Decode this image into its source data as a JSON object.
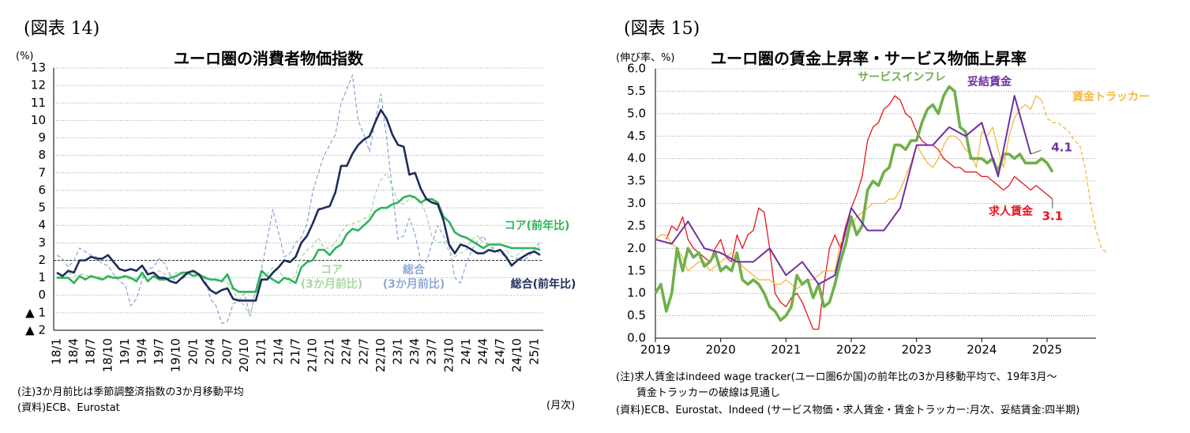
{
  "figure_label_left": "(図表 14)",
  "figure_label_right": "(図表 15)",
  "chart_data": [
    {
      "type": "line",
      "title": "ユーロ圏の消費者物価指数",
      "y_label": "(%)",
      "x_label": "(月次)",
      "notes": [
        "(注)3か月前比は季節調整済指数の3か月移動平均",
        "(資料)ECB、Eurostat"
      ],
      "ylim": [
        -2,
        13
      ],
      "yticks": [
        {
          "value": -2,
          "label": "▲ 2"
        },
        {
          "value": -1,
          "label": "▲ 1"
        },
        0,
        1,
        2,
        3,
        4,
        5,
        6,
        7,
        8,
        9,
        10,
        11,
        12,
        13
      ],
      "grid": true,
      "hline": 2,
      "categories": [
        "18/1",
        null,
        null,
        "18/4",
        null,
        null,
        "18/7",
        null,
        null,
        "18/10",
        null,
        null,
        "19/1",
        null,
        null,
        "19/4",
        null,
        null,
        "19/7",
        null,
        null,
        "19/10",
        null,
        null,
        "20/1",
        null,
        null,
        "20/4",
        null,
        null,
        "20/7",
        null,
        null,
        "20/10",
        null,
        null,
        "21/1",
        null,
        null,
        "21/4",
        null,
        null,
        "21/7",
        null,
        null,
        "21/10",
        null,
        null,
        "22/1",
        null,
        null,
        "22/4",
        null,
        null,
        "22/7",
        null,
        null,
        "22/10",
        null,
        null,
        "23/1",
        null,
        null,
        "23/4",
        null,
        null,
        "23/7",
        null,
        null,
        "23/10",
        null,
        null,
        "24/1",
        null,
        null,
        "24/4",
        null,
        null,
        "24/7",
        null,
        null,
        "24/10",
        null,
        null,
        "25/1",
        null
      ],
      "series": [
        {
          "name": "総合\n(3か月前比)",
          "color": "#8fa8d8",
          "dash": true,
          "width": 1.3,
          "values": [
            2.3,
            2.1,
            1.6,
            2.0,
            2.7,
            2.5,
            2.3,
            2.2,
            1.8,
            1.7,
            1.2,
            0.8,
            0.6,
            -0.6,
            -0.2,
            0.9,
            1.5,
            1.6,
            2.1,
            1.8,
            1.1,
            0.8,
            0.9,
            1.2,
            1.4,
            1.2,
            1.1,
            -0.2,
            -0.6,
            -1.6,
            -1.5,
            -0.5,
            -0.3,
            0.1,
            -1.2,
            0.4,
            1.5,
            3.2,
            4.9,
            3.6,
            2.2,
            2.4,
            3.0,
            3.3,
            4.1,
            5.9,
            7.0,
            8.0,
            8.6,
            9.2,
            11.0,
            11.8,
            12.6,
            10.0,
            9.2,
            8.2,
            10.0,
            11.5,
            9.0,
            6.0,
            3.2,
            3.4,
            4.4,
            3.5,
            2.0,
            1.9,
            3.0,
            4.0,
            3.4,
            2.8,
            1.0,
            0.7,
            1.8,
            2.6,
            3.1,
            3.4,
            2.8,
            2.6,
            2.4,
            2.2,
            1.6,
            2.2,
            2.0,
            2.2,
            2.7,
            3.0
          ]
        },
        {
          "name": "コア\n(3か月前比)",
          "color": "#a8d8a0",
          "dash": true,
          "width": 1.3,
          "values": [
            1.0,
            1.1,
            1.3,
            1.1,
            1.2,
            1.2,
            1.0,
            1.1,
            1.0,
            0.9,
            1.1,
            1.0,
            1.0,
            0.9,
            1.0,
            1.1,
            1.2,
            1.3,
            1.4,
            1.2,
            1.1,
            1.3,
            1.2,
            1.2,
            1.3,
            1.1,
            1.1,
            0.9,
            0.8,
            0.9,
            0.7,
            0.3,
            -0.3,
            -0.6,
            -1.2,
            0.3,
            1.1,
            1.2,
            1.6,
            1.4,
            1.0,
            0.7,
            1.2,
            2.2,
            2.6,
            2.8,
            3.3,
            2.7,
            2.7,
            3.0,
            3.6,
            4.0,
            4.1,
            4.2,
            4.4,
            4.5,
            5.8,
            6.6,
            7.0,
            6.2,
            5.4,
            5.2,
            5.5,
            5.6,
            5.4,
            4.6,
            3.3,
            3.0,
            3.1,
            2.5,
            2.2,
            2.4,
            2.6,
            3.2,
            3.4,
            3.0,
            2.9,
            2.7,
            2.4,
            2.6,
            2.2,
            2.3,
            2.6,
            2.7,
            2.6,
            2.8
          ]
        },
        {
          "name": "コア(前年比)",
          "color": "#2db35d",
          "width": 2.6,
          "values": [
            1.0,
            1.0,
            1.0,
            0.7,
            1.1,
            0.9,
            1.1,
            1.0,
            0.9,
            1.1,
            1.0,
            1.0,
            1.1,
            1.0,
            0.8,
            1.3,
            0.8,
            1.1,
            0.9,
            0.9,
            1.0,
            1.1,
            1.3,
            1.3,
            1.1,
            1.2,
            1.0,
            0.9,
            0.9,
            0.8,
            1.2,
            0.4,
            0.2,
            0.2,
            0.2,
            0.2,
            1.4,
            1.1,
            0.9,
            0.7,
            1.0,
            0.9,
            0.7,
            1.6,
            1.9,
            2.0,
            2.6,
            2.6,
            2.3,
            2.7,
            2.9,
            3.5,
            3.8,
            3.7,
            4.0,
            4.3,
            4.8,
            5.0,
            5.0,
            5.2,
            5.3,
            5.6,
            5.7,
            5.6,
            5.3,
            5.5,
            5.5,
            5.3,
            4.5,
            4.2,
            3.6,
            3.4,
            3.3,
            3.1,
            2.9,
            2.7,
            2.9,
            2.9,
            2.9,
            2.8,
            2.7,
            2.7,
            2.7,
            2.7,
            2.7,
            2.6
          ]
        },
        {
          "name": "総合(前年比)",
          "color": "#1f2d5a",
          "width": 2.6,
          "values": [
            1.3,
            1.1,
            1.4,
            1.3,
            2.0,
            2.0,
            2.2,
            2.1,
            2.1,
            2.3,
            1.9,
            1.5,
            1.4,
            1.5,
            1.4,
            1.7,
            1.2,
            1.3,
            1.0,
            1.0,
            0.8,
            0.7,
            1.0,
            1.3,
            1.4,
            1.2,
            0.7,
            0.3,
            0.1,
            0.3,
            0.4,
            -0.2,
            -0.3,
            -0.3,
            -0.3,
            -0.3,
            0.9,
            0.9,
            1.3,
            1.6,
            2.0,
            1.9,
            2.2,
            3.0,
            3.4,
            4.1,
            4.9,
            5.0,
            5.1,
            5.9,
            7.4,
            7.4,
            8.1,
            8.6,
            8.9,
            9.1,
            9.9,
            10.6,
            10.1,
            9.2,
            8.6,
            8.5,
            6.9,
            7.0,
            6.1,
            5.5,
            5.3,
            5.2,
            4.3,
            2.9,
            2.4,
            2.9,
            2.8,
            2.6,
            2.4,
            2.4,
            2.6,
            2.5,
            2.6,
            2.2,
            1.7,
            2.0,
            2.2,
            2.4,
            2.5,
            2.3
          ]
        }
      ]
    },
    {
      "type": "line",
      "title": "ユーロ圏の賃金上昇率・サービス物価上昇率",
      "y_label": "(伸び率、%)",
      "notes": [
        "(注)求人賃金はindeed wage tracker(ユーロ圏6か国)の前年比の3か月移動平均で、19年3月～",
        "　　賃金トラッカーの破線は見通し",
        "(資料)ECB、Eurostat、Indeed (サービス物価・求人賃金・賃金トラッカー:月次、妥結賃金:四半期)"
      ],
      "xlim": [
        2019,
        2025.75
      ],
      "xticks": [
        2019,
        2020,
        2021,
        2022,
        2023,
        2024,
        2025
      ],
      "ylim": [
        0,
        6
      ],
      "yticks": [
        {
          "value": 0,
          "label": "0.0"
        },
        {
          "value": 0.5,
          "label": "0.5"
        },
        {
          "value": 1,
          "label": "1.0"
        },
        {
          "value": 1.5,
          "label": "1.5"
        },
        {
          "value": 2,
          "label": "2.0"
        },
        {
          "value": 2.5,
          "label": "2.5"
        },
        {
          "value": 3,
          "label": "3.0"
        },
        {
          "value": 3.5,
          "label": "3.5"
        },
        {
          "value": 4,
          "label": "4.0"
        },
        {
          "value": 4.5,
          "label": "4.5"
        },
        {
          "value": 5,
          "label": "5.0"
        },
        {
          "value": 5.5,
          "label": "5.5"
        },
        {
          "value": 6,
          "label": "6.0"
        }
      ],
      "grid": true,
      "x": [
        2019,
        2019.083,
        2019.167,
        2019.25,
        2019.333,
        2019.417,
        2019.5,
        2019.583,
        2019.667,
        2019.75,
        2019.833,
        2019.917,
        2020,
        2020.083,
        2020.167,
        2020.25,
        2020.333,
        2020.417,
        2020.5,
        2020.583,
        2020.667,
        2020.75,
        2020.833,
        2020.917,
        2021,
        2021.083,
        2021.167,
        2021.25,
        2021.333,
        2021.417,
        2021.5,
        2021.583,
        2021.667,
        2021.75,
        2021.833,
        2021.917,
        2022,
        2022.083,
        2022.167,
        2022.25,
        2022.333,
        2022.417,
        2022.5,
        2022.583,
        2022.667,
        2022.75,
        2022.833,
        2022.917,
        2023,
        2023.083,
        2023.167,
        2023.25,
        2023.333,
        2023.417,
        2023.5,
        2023.583,
        2023.667,
        2023.75,
        2023.833,
        2023.917,
        2024,
        2024.083,
        2024.167,
        2024.25,
        2024.333,
        2024.417,
        2024.5,
        2024.583,
        2024.667,
        2024.75,
        2024.833,
        2024.917,
        2025,
        2025.083,
        2025.167,
        2025.25,
        2025.333,
        2025.417,
        2025.5,
        2025.583,
        2025.667,
        2025.75,
        2025.833,
        2025.917
      ],
      "series": [
        {
          "name": "求人賃金",
          "color": "#e8141c",
          "width": 1.3,
          "end_label": true,
          "values": [
            null,
            null,
            2.2,
            2.5,
            2.4,
            2.7,
            2.2,
            2.0,
            1.9,
            1.8,
            1.7,
            2.0,
            2.2,
            1.8,
            1.7,
            2.3,
            2.0,
            2.3,
            2.4,
            2.9,
            2.8,
            2.0,
            1.0,
            0.8,
            0.7,
            0.9,
            1.0,
            0.8,
            0.5,
            0.2,
            0.2,
            1.2,
            2.0,
            2.3,
            2.0,
            2.5,
            2.9,
            3.2,
            3.6,
            4.4,
            4.7,
            4.8,
            5.1,
            5.2,
            5.4,
            5.3,
            5.0,
            4.9,
            4.6,
            4.4,
            4.3,
            4.3,
            4.2,
            4.0,
            3.9,
            3.8,
            3.8,
            3.7,
            3.7,
            3.7,
            3.6,
            3.6,
            3.5,
            3.4,
            3.3,
            3.4,
            3.6,
            3.5,
            3.4,
            3.3,
            3.4,
            3.3,
            3.2,
            3.1,
            null,
            null,
            null,
            null,
            null,
            null,
            null,
            null,
            null,
            null
          ]
        },
        {
          "name": "賃金トラッカー",
          "color": "#f5b83d",
          "width": 1.3,
          "values": [
            2.2,
            2.3,
            2.3,
            2.1,
            2.0,
            1.8,
            1.5,
            1.6,
            1.7,
            1.7,
            1.5,
            1.6,
            1.7,
            1.8,
            1.9,
            1.8,
            1.6,
            1.5,
            1.4,
            1.3,
            1.3,
            1.3,
            1.2,
            1.2,
            1.3,
            1.2,
            1.1,
            1.2,
            1.3,
            1.3,
            1.4,
            1.5,
            1.5,
            1.5,
            2.1,
            2.3,
            2.5,
            2.7,
            2.8,
            2.9,
            3.0,
            3.0,
            3.0,
            3.1,
            3.1,
            3.3,
            3.6,
            3.9,
            4.3,
            4.1,
            3.9,
            3.8,
            4.0,
            4.3,
            4.5,
            4.5,
            4.4,
            4.2,
            4.1,
            3.8,
            4.6,
            4.5,
            4.7,
            4.2,
            3.8,
            4.5,
            4.9,
            5.1,
            5.2,
            5.1,
            5.4,
            5.3,
            null,
            null,
            null,
            null,
            null,
            null,
            null,
            null,
            null,
            null,
            null,
            null
          ],
          "forecast_values": [
            null,
            null,
            null,
            null,
            null,
            null,
            null,
            null,
            null,
            null,
            null,
            null,
            null,
            null,
            null,
            null,
            null,
            null,
            null,
            null,
            null,
            null,
            null,
            null,
            null,
            null,
            null,
            null,
            null,
            null,
            null,
            null,
            null,
            null,
            null,
            null,
            null,
            null,
            null,
            null,
            null,
            null,
            null,
            null,
            null,
            null,
            null,
            null,
            null,
            null,
            null,
            null,
            null,
            null,
            null,
            null,
            null,
            null,
            null,
            null,
            null,
            null,
            null,
            null,
            null,
            null,
            null,
            null,
            null,
            null,
            null,
            null,
            4.9,
            4.8,
            4.8,
            4.7,
            4.6,
            4.4,
            4.3,
            3.8,
            3.0,
            2.4,
            2.0,
            1.9
          ]
        },
        {
          "name": "サービスインフレ",
          "color": "#6fb04a",
          "width": 3.6,
          "values": [
            1.0,
            1.2,
            0.6,
            1.0,
            2.0,
            1.5,
            2.0,
            1.8,
            1.9,
            1.6,
            1.7,
            1.9,
            1.5,
            1.6,
            1.5,
            1.9,
            1.3,
            1.2,
            1.3,
            1.2,
            1.0,
            0.7,
            0.6,
            0.4,
            0.5,
            0.7,
            1.4,
            1.2,
            1.3,
            0.9,
            1.2,
            0.7,
            0.8,
            1.2,
            1.7,
            2.1,
            2.7,
            2.3,
            2.5,
            3.3,
            3.5,
            3.4,
            3.7,
            3.8,
            4.3,
            4.3,
            4.2,
            4.4,
            4.4,
            4.8,
            5.1,
            5.2,
            5.0,
            5.4,
            5.6,
            5.5,
            4.7,
            4.6,
            4.0,
            4.0,
            4.0,
            3.9,
            4.0,
            3.7,
            4.1,
            4.1,
            4.0,
            4.1,
            3.9,
            3.9,
            3.9,
            4.0,
            3.9,
            3.7,
            null,
            null,
            null,
            null,
            null,
            null,
            null,
            null,
            null,
            null
          ]
        },
        {
          "name": "妥結賃金",
          "color": "#7030a0",
          "width": 2,
          "end_label": true,
          "x": [
            2019,
            2019.25,
            2019.5,
            2019.75,
            2020,
            2020.25,
            2020.5,
            2020.75,
            2021,
            2021.25,
            2021.5,
            2021.75,
            2022,
            2022.25,
            2022.5,
            2022.75,
            2023,
            2023.25,
            2023.5,
            2023.75,
            2024,
            2024.25,
            2024.5,
            2024.75
          ],
          "values": [
            2.2,
            2.1,
            2.6,
            2.0,
            1.9,
            1.7,
            1.7,
            2.0,
            1.4,
            1.7,
            1.2,
            1.4,
            2.9,
            2.4,
            2.4,
            2.9,
            4.3,
            4.3,
            4.7,
            4.5,
            4.8,
            3.6,
            5.4,
            4.1
          ]
        }
      ]
    }
  ]
}
